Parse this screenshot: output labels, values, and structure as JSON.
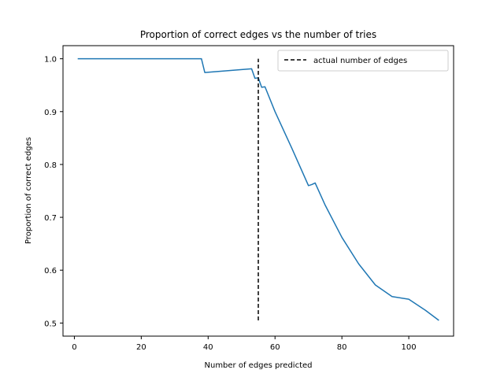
{
  "chart_data": {
    "type": "line",
    "title": "Proportion of correct edges vs the number of tries",
    "xlabel": "Number of edges predicted",
    "ylabel": "Proportion of correct edges",
    "xlim": [
      -3.4,
      113.4
    ],
    "ylim": [
      0.4752,
      1.0248
    ],
    "xticks": [
      0,
      20,
      40,
      60,
      80,
      100
    ],
    "xtick_labels": [
      "0",
      "20",
      "40",
      "60",
      "80",
      "100"
    ],
    "yticks": [
      0.5,
      0.6,
      0.7,
      0.8,
      0.9,
      1.0
    ],
    "ytick_labels": [
      "0.5",
      "0.6",
      "0.7",
      "0.8",
      "0.9",
      "1.0"
    ],
    "grid": false,
    "legend_position": "top-right",
    "series": [
      {
        "name": "",
        "color": "#1f77b4",
        "style": "solid",
        "x": [
          1,
          38,
          39,
          53,
          54,
          55,
          56,
          57,
          60,
          65,
          70,
          71,
          72,
          75,
          80,
          85,
          90,
          95,
          100,
          105,
          109
        ],
        "y": [
          1.0,
          1.0,
          0.974,
          0.981,
          0.963,
          0.964,
          0.946,
          0.947,
          0.9,
          0.831,
          0.76,
          0.762,
          0.765,
          0.723,
          0.662,
          0.612,
          0.572,
          0.55,
          0.545,
          0.524,
          0.505
        ]
      },
      {
        "name": "actual number of edges",
        "color": "#000000",
        "style": "dashed",
        "x": [
          55,
          55
        ],
        "y": [
          0.505,
          1.0
        ]
      }
    ],
    "legend": [
      "actual number of edges"
    ]
  }
}
